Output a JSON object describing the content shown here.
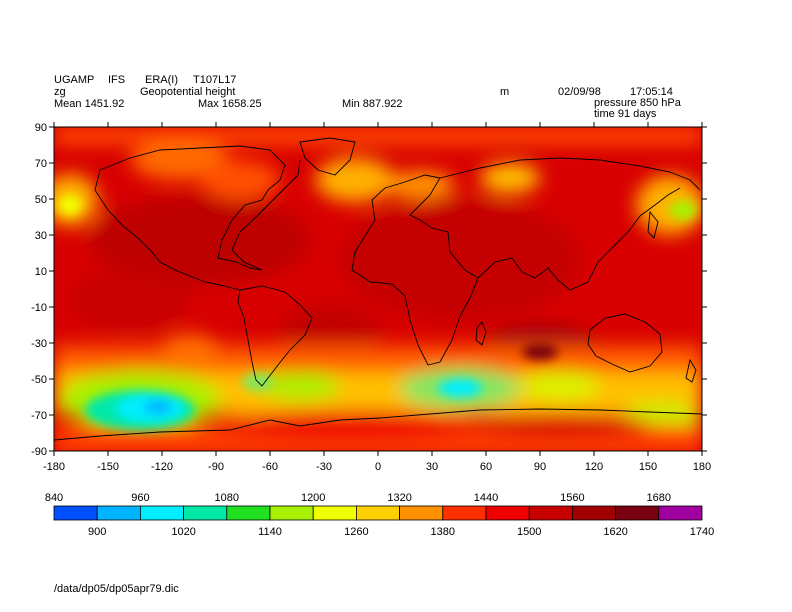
{
  "header": {
    "line1": [
      "UGAMP",
      "IFS",
      "ERA(I)",
      "T107L17"
    ],
    "var_code": "zg",
    "var_name": "Geopotential height",
    "units": "m",
    "date": "02/09/98",
    "time": "17:05:14",
    "mean": "Mean 1451.92",
    "max": "Max 1658.25",
    "min": "Min 887.922",
    "pressure": "pressure 850 hPa",
    "elapsed": "time 91 days"
  },
  "footer": {
    "path": "/data/dp05/dp05apr79.dic"
  },
  "map": {
    "lon_range": [
      -180,
      180
    ],
    "lat_range": [
      -90,
      90
    ],
    "x_ticks": [
      "-180",
      "-150",
      "-120",
      "-90",
      "-60",
      "-30",
      "0",
      "30",
      "60",
      "90",
      "120",
      "150",
      "180"
    ],
    "y_ticks": [
      "90",
      "70",
      "50",
      "30",
      "10",
      "-10",
      "-30",
      "-50",
      "-70",
      "-90"
    ],
    "x_tick_values": [
      -180,
      -150,
      -120,
      -90,
      -60,
      -30,
      0,
      30,
      60,
      90,
      120,
      150,
      180
    ],
    "y_tick_values": [
      90,
      70,
      50,
      30,
      10,
      -10,
      -30,
      -50,
      -70,
      -90
    ]
  },
  "colorbar": {
    "top_labels": [
      "840",
      "960",
      "1080",
      "1200",
      "1320",
      "1440",
      "1560",
      "1680"
    ],
    "bottom_labels": [
      "900",
      "1020",
      "1140",
      "1260",
      "1380",
      "1500",
      "1620",
      "1740"
    ],
    "levels": [
      840,
      900,
      960,
      1020,
      1080,
      1140,
      1200,
      1260,
      1320,
      1380,
      1440,
      1500,
      1560,
      1620,
      1680,
      1740
    ],
    "colors": [
      "#0050ff",
      "#00b4ff",
      "#00eeff",
      "#00e8a8",
      "#20e020",
      "#a8f000",
      "#f0ff00",
      "#ffd000",
      "#ff9000",
      "#ff3000",
      "#ee0000",
      "#c80000",
      "#a00000",
      "#780010",
      "#a000a0"
    ]
  }
}
